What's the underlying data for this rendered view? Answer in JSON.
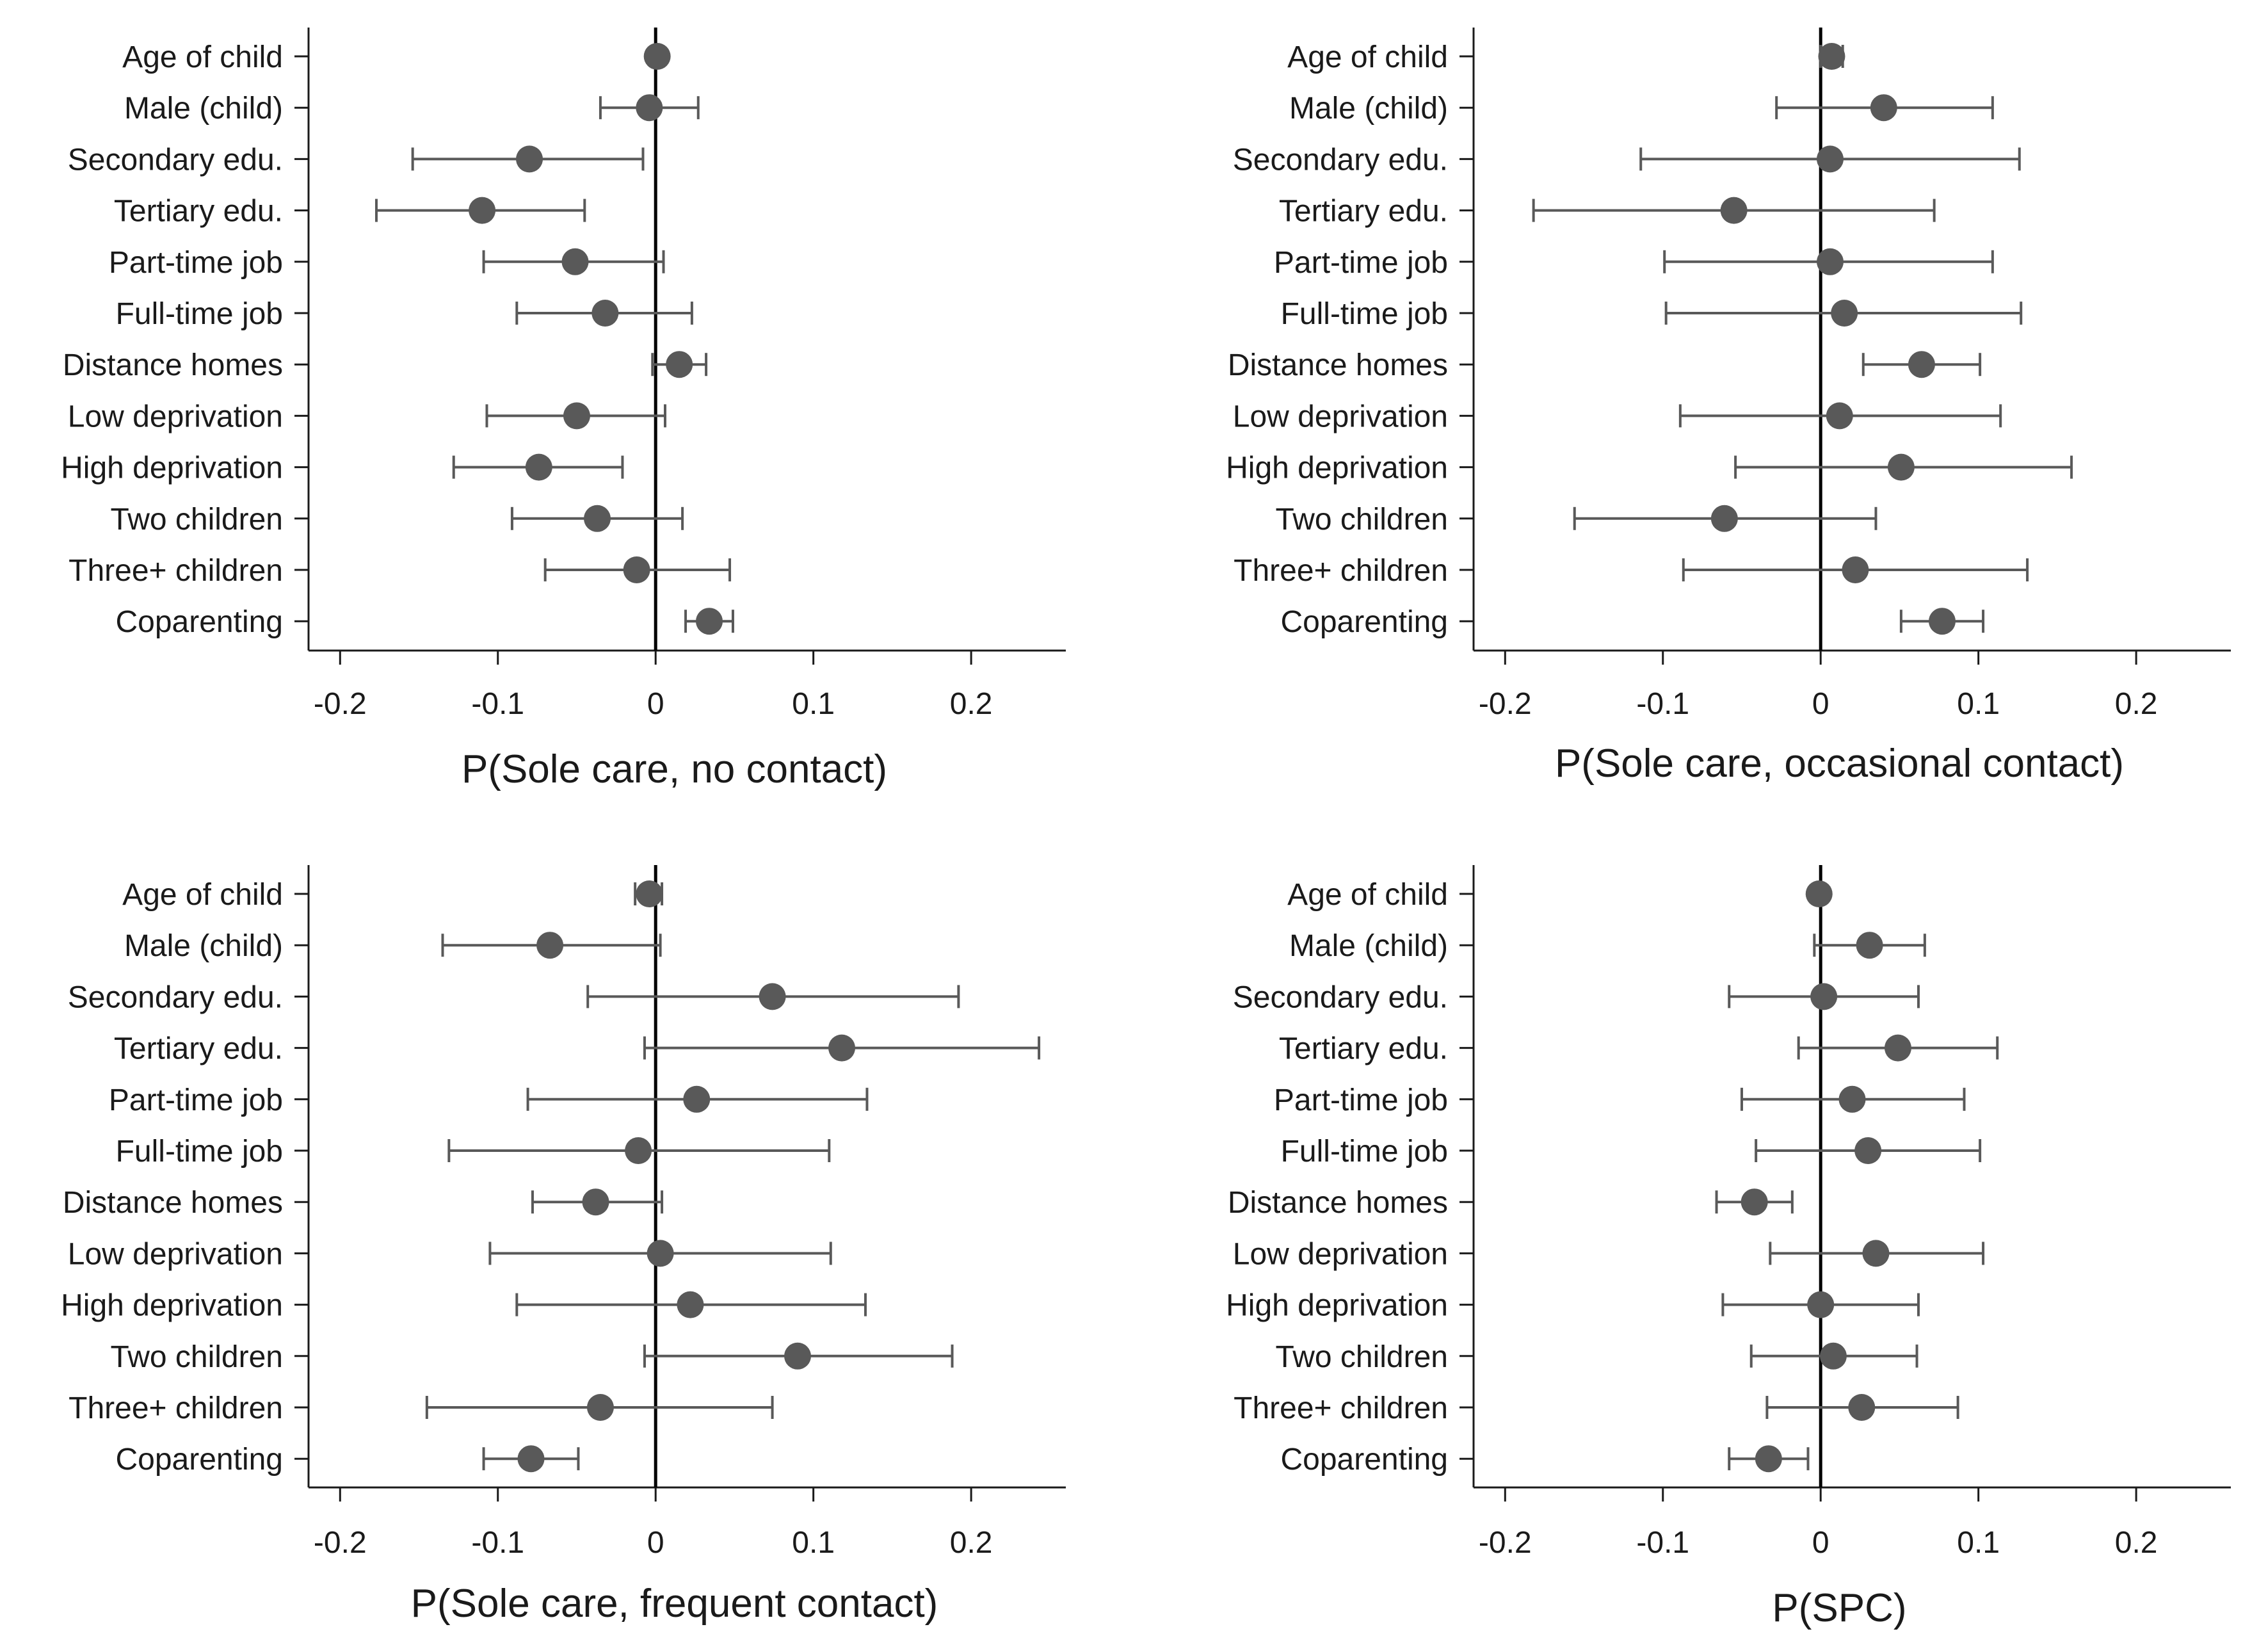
{
  "chart_data": [
    {
      "type": "scatter",
      "subtype": "coefficient_plot_with_confidence_intervals",
      "title": "",
      "xlabel": "P(Sole care, no contact)",
      "xticks": [
        -0.2,
        -0.1,
        0,
        0.1,
        0.2
      ],
      "xtick_labels": [
        "-0.2",
        "-0.1",
        "0",
        "0.1",
        "0.2"
      ],
      "xlim": [
        -0.22,
        0.26
      ],
      "reference_line": 0,
      "categories": [
        "Age of child",
        "Male (child)",
        "Secondary edu.",
        "Tertiary edu.",
        "Part-time job",
        "Full-time job",
        "Distance homes",
        "Low deprivation",
        "High deprivation",
        "Two children",
        "Three+ children",
        "Coparenting"
      ],
      "estimates": [
        0.001,
        -0.004,
        -0.08,
        -0.11,
        -0.051,
        -0.032,
        0.015,
        -0.05,
        -0.074,
        -0.037,
        -0.012,
        0.034
      ],
      "ci_low": [
        0.001,
        -0.035,
        -0.154,
        -0.177,
        -0.109,
        -0.088,
        -0.002,
        -0.107,
        -0.128,
        -0.091,
        -0.07,
        0.019
      ],
      "ci_high": [
        0.001,
        0.027,
        -0.008,
        -0.045,
        0.005,
        0.023,
        0.032,
        0.006,
        -0.021,
        0.017,
        0.047,
        0.049
      ]
    },
    {
      "type": "scatter",
      "subtype": "coefficient_plot_with_confidence_intervals",
      "title": "",
      "xlabel": "P(Sole care, occasional contact)",
      "xticks": [
        -0.2,
        -0.1,
        0,
        0.1,
        0.2
      ],
      "xtick_labels": [
        "-0.2",
        "-0.1",
        "0",
        "0.1",
        "0.2"
      ],
      "xlim": [
        -0.22,
        0.26
      ],
      "reference_line": 0,
      "categories": [
        "Age of child",
        "Male (child)",
        "Secondary edu.",
        "Tertiary edu.",
        "Part-time job",
        "Full-time job",
        "Distance homes",
        "Low deprivation",
        "High deprivation",
        "Two children",
        "Three+ children",
        "Coparenting"
      ],
      "estimates": [
        0.007,
        0.04,
        0.006,
        -0.055,
        0.006,
        0.015,
        0.064,
        0.012,
        0.051,
        -0.061,
        0.022,
        0.077
      ],
      "ci_low": [
        0.0,
        -0.028,
        -0.114,
        -0.182,
        -0.099,
        -0.098,
        0.027,
        -0.089,
        -0.054,
        -0.156,
        -0.087,
        0.051
      ],
      "ci_high": [
        0.014,
        0.109,
        0.126,
        0.072,
        0.109,
        0.127,
        0.101,
        0.114,
        0.159,
        0.035,
        0.131,
        0.103
      ]
    },
    {
      "type": "scatter",
      "subtype": "coefficient_plot_with_confidence_intervals",
      "title": "",
      "xlabel": "P(Sole care, frequent contact)",
      "xticks": [
        -0.2,
        -0.1,
        0,
        0.1,
        0.2
      ],
      "xtick_labels": [
        "-0.2",
        "-0.1",
        "0",
        "0.1",
        "0.2"
      ],
      "xlim": [
        -0.22,
        0.26
      ],
      "reference_line": 0,
      "categories": [
        "Age of child",
        "Male (child)",
        "Secondary edu.",
        "Tertiary edu.",
        "Part-time job",
        "Full-time job",
        "Distance homes",
        "Low deprivation",
        "High deprivation",
        "Two children",
        "Three+ children",
        "Coparenting"
      ],
      "estimates": [
        -0.004,
        -0.067,
        0.074,
        0.118,
        0.026,
        -0.011,
        -0.038,
        0.003,
        0.022,
        0.09,
        -0.035,
        -0.079
      ],
      "ci_low": [
        -0.013,
        -0.135,
        -0.043,
        -0.007,
        -0.081,
        -0.131,
        -0.078,
        -0.105,
        -0.088,
        -0.007,
        -0.145,
        -0.109
      ],
      "ci_high": [
        0.004,
        0.003,
        0.192,
        0.243,
        0.134,
        0.11,
        0.004,
        0.111,
        0.133,
        0.188,
        0.074,
        -0.049
      ]
    },
    {
      "type": "scatter",
      "subtype": "coefficient_plot_with_confidence_intervals",
      "title": "",
      "xlabel": "P(SPC)",
      "xticks": [
        -0.2,
        -0.1,
        0,
        0.1,
        0.2
      ],
      "xtick_labels": [
        "-0.2",
        "-0.1",
        "0",
        "0.1",
        "0.2"
      ],
      "xlim": [
        -0.22,
        0.26
      ],
      "reference_line": 0,
      "categories": [
        "Age of child",
        "Male (child)",
        "Secondary edu.",
        "Tertiary edu.",
        "Part-time job",
        "Full-time job",
        "Distance homes",
        "Low deprivation",
        "High deprivation",
        "Two children",
        "Three+ children",
        "Coparenting"
      ],
      "estimates": [
        -0.001,
        0.031,
        0.002,
        0.049,
        0.02,
        0.03,
        -0.042,
        0.035,
        0.0,
        0.008,
        0.026,
        -0.033
      ],
      "ci_low": [
        -0.001,
        -0.004,
        -0.058,
        -0.014,
        -0.05,
        -0.041,
        -0.066,
        -0.032,
        -0.062,
        -0.044,
        -0.034,
        -0.058
      ],
      "ci_high": [
        -0.001,
        0.066,
        0.062,
        0.112,
        0.091,
        0.101,
        -0.018,
        0.103,
        0.062,
        0.061,
        0.087,
        -0.008
      ]
    }
  ],
  "style": {
    "marker_color": "#595959",
    "line_color": "#595959",
    "axis_color": "#1a1a1a",
    "text_color": "#1a1a1a",
    "background": "#ffffff"
  }
}
